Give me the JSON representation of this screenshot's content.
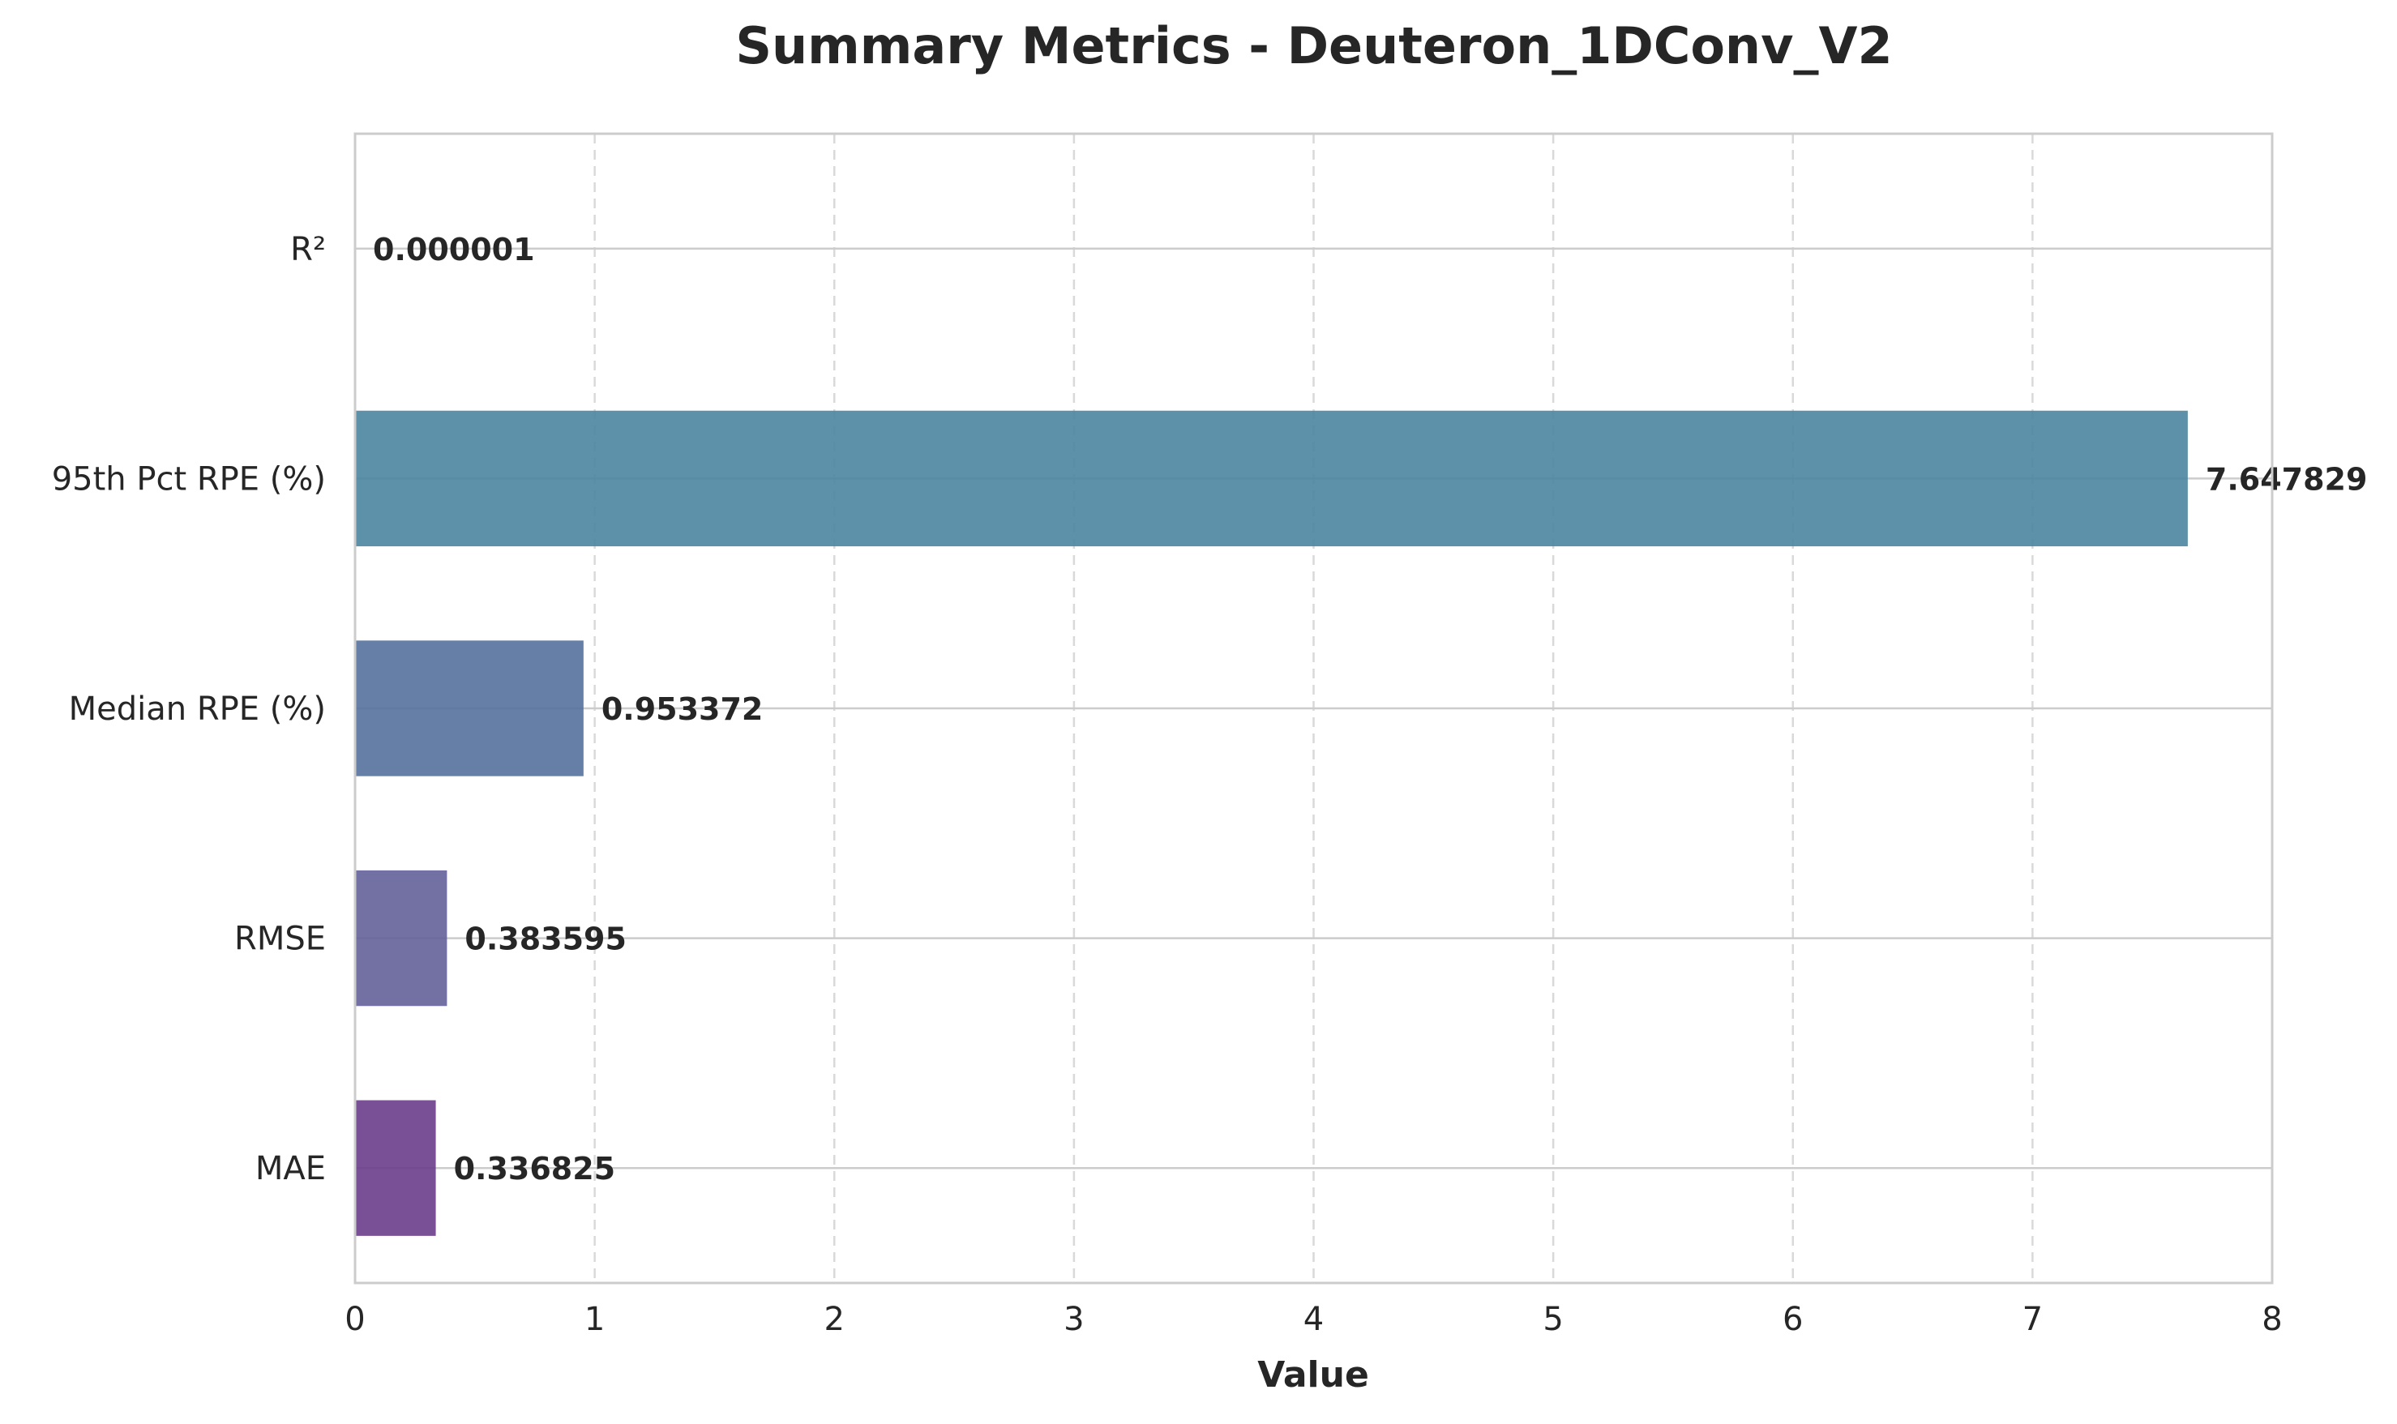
{
  "chart_data": {
    "type": "bar",
    "orientation": "horizontal",
    "title": "Summary Metrics - Deuteron_1DConv_V2",
    "xlabel": "Value",
    "ylabel": "",
    "xlim": [
      0,
      8
    ],
    "xticks": [
      "0",
      "1",
      "2",
      "3",
      "4",
      "5",
      "6",
      "7",
      "8"
    ],
    "grid": true,
    "categories": [
      "MAE",
      "RMSE",
      "Median RPE (%)",
      "95th Pct RPE (%)",
      "R²"
    ],
    "values": [
      0.336825,
      0.383595,
      0.953372,
      7.647829,
      1e-06
    ],
    "value_labels": [
      "0.336825",
      "0.383595",
      "0.953372",
      "7.647829",
      "0.000001"
    ],
    "colors": [
      "#6a3d8a",
      "#64609a",
      "#55719c",
      "#4a85a0",
      "#4a8aa0"
    ]
  }
}
